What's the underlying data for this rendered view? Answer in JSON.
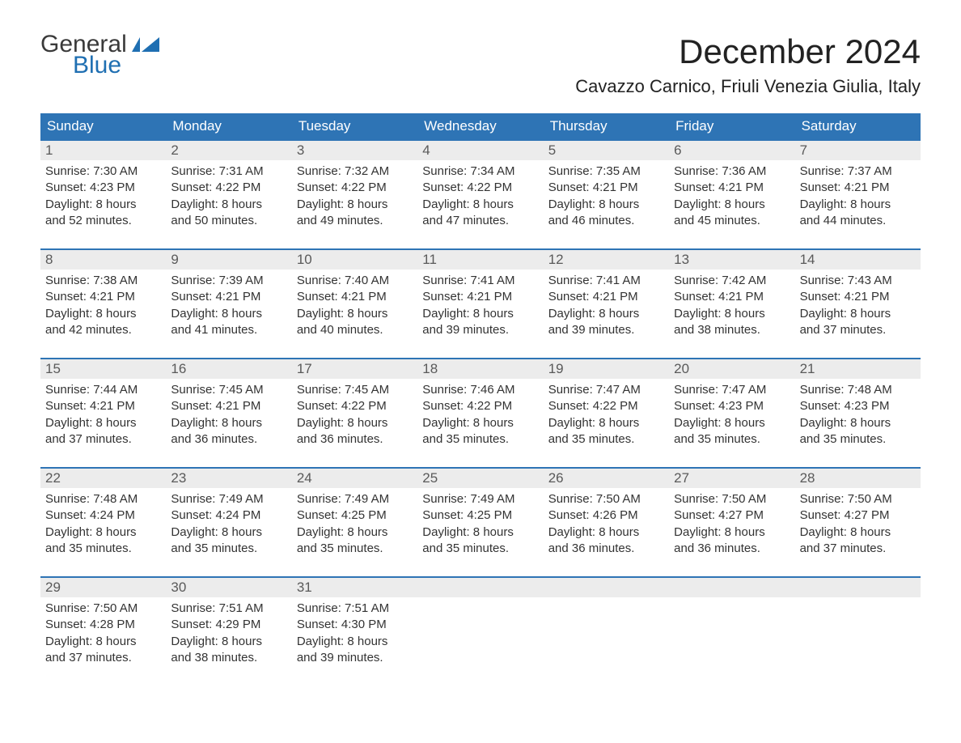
{
  "logo": {
    "general": "General",
    "blue": "Blue",
    "accent": "#1f6fb2"
  },
  "title": "December 2024",
  "location": "Cavazzo Carnico, Friuli Venezia Giulia, Italy",
  "colors": {
    "header_bg": "#2e74b5",
    "header_text": "#ffffff",
    "daynum_bg": "#ececec",
    "daynum_text": "#5a5a5a",
    "body_text": "#333333",
    "week_border": "#2e74b5"
  },
  "dow": [
    "Sunday",
    "Monday",
    "Tuesday",
    "Wednesday",
    "Thursday",
    "Friday",
    "Saturday"
  ],
  "weeks": [
    [
      {
        "n": "1",
        "sunrise": "Sunrise: 7:30 AM",
        "sunset": "Sunset: 4:23 PM",
        "d1": "Daylight: 8 hours",
        "d2": "and 52 minutes."
      },
      {
        "n": "2",
        "sunrise": "Sunrise: 7:31 AM",
        "sunset": "Sunset: 4:22 PM",
        "d1": "Daylight: 8 hours",
        "d2": "and 50 minutes."
      },
      {
        "n": "3",
        "sunrise": "Sunrise: 7:32 AM",
        "sunset": "Sunset: 4:22 PM",
        "d1": "Daylight: 8 hours",
        "d2": "and 49 minutes."
      },
      {
        "n": "4",
        "sunrise": "Sunrise: 7:34 AM",
        "sunset": "Sunset: 4:22 PM",
        "d1": "Daylight: 8 hours",
        "d2": "and 47 minutes."
      },
      {
        "n": "5",
        "sunrise": "Sunrise: 7:35 AM",
        "sunset": "Sunset: 4:21 PM",
        "d1": "Daylight: 8 hours",
        "d2": "and 46 minutes."
      },
      {
        "n": "6",
        "sunrise": "Sunrise: 7:36 AM",
        "sunset": "Sunset: 4:21 PM",
        "d1": "Daylight: 8 hours",
        "d2": "and 45 minutes."
      },
      {
        "n": "7",
        "sunrise": "Sunrise: 7:37 AM",
        "sunset": "Sunset: 4:21 PM",
        "d1": "Daylight: 8 hours",
        "d2": "and 44 minutes."
      }
    ],
    [
      {
        "n": "8",
        "sunrise": "Sunrise: 7:38 AM",
        "sunset": "Sunset: 4:21 PM",
        "d1": "Daylight: 8 hours",
        "d2": "and 42 minutes."
      },
      {
        "n": "9",
        "sunrise": "Sunrise: 7:39 AM",
        "sunset": "Sunset: 4:21 PM",
        "d1": "Daylight: 8 hours",
        "d2": "and 41 minutes."
      },
      {
        "n": "10",
        "sunrise": "Sunrise: 7:40 AM",
        "sunset": "Sunset: 4:21 PM",
        "d1": "Daylight: 8 hours",
        "d2": "and 40 minutes."
      },
      {
        "n": "11",
        "sunrise": "Sunrise: 7:41 AM",
        "sunset": "Sunset: 4:21 PM",
        "d1": "Daylight: 8 hours",
        "d2": "and 39 minutes."
      },
      {
        "n": "12",
        "sunrise": "Sunrise: 7:41 AM",
        "sunset": "Sunset: 4:21 PM",
        "d1": "Daylight: 8 hours",
        "d2": "and 39 minutes."
      },
      {
        "n": "13",
        "sunrise": "Sunrise: 7:42 AM",
        "sunset": "Sunset: 4:21 PM",
        "d1": "Daylight: 8 hours",
        "d2": "and 38 minutes."
      },
      {
        "n": "14",
        "sunrise": "Sunrise: 7:43 AM",
        "sunset": "Sunset: 4:21 PM",
        "d1": "Daylight: 8 hours",
        "d2": "and 37 minutes."
      }
    ],
    [
      {
        "n": "15",
        "sunrise": "Sunrise: 7:44 AM",
        "sunset": "Sunset: 4:21 PM",
        "d1": "Daylight: 8 hours",
        "d2": "and 37 minutes."
      },
      {
        "n": "16",
        "sunrise": "Sunrise: 7:45 AM",
        "sunset": "Sunset: 4:21 PM",
        "d1": "Daylight: 8 hours",
        "d2": "and 36 minutes."
      },
      {
        "n": "17",
        "sunrise": "Sunrise: 7:45 AM",
        "sunset": "Sunset: 4:22 PM",
        "d1": "Daylight: 8 hours",
        "d2": "and 36 minutes."
      },
      {
        "n": "18",
        "sunrise": "Sunrise: 7:46 AM",
        "sunset": "Sunset: 4:22 PM",
        "d1": "Daylight: 8 hours",
        "d2": "and 35 minutes."
      },
      {
        "n": "19",
        "sunrise": "Sunrise: 7:47 AM",
        "sunset": "Sunset: 4:22 PM",
        "d1": "Daylight: 8 hours",
        "d2": "and 35 minutes."
      },
      {
        "n": "20",
        "sunrise": "Sunrise: 7:47 AM",
        "sunset": "Sunset: 4:23 PM",
        "d1": "Daylight: 8 hours",
        "d2": "and 35 minutes."
      },
      {
        "n": "21",
        "sunrise": "Sunrise: 7:48 AM",
        "sunset": "Sunset: 4:23 PM",
        "d1": "Daylight: 8 hours",
        "d2": "and 35 minutes."
      }
    ],
    [
      {
        "n": "22",
        "sunrise": "Sunrise: 7:48 AM",
        "sunset": "Sunset: 4:24 PM",
        "d1": "Daylight: 8 hours",
        "d2": "and 35 minutes."
      },
      {
        "n": "23",
        "sunrise": "Sunrise: 7:49 AM",
        "sunset": "Sunset: 4:24 PM",
        "d1": "Daylight: 8 hours",
        "d2": "and 35 minutes."
      },
      {
        "n": "24",
        "sunrise": "Sunrise: 7:49 AM",
        "sunset": "Sunset: 4:25 PM",
        "d1": "Daylight: 8 hours",
        "d2": "and 35 minutes."
      },
      {
        "n": "25",
        "sunrise": "Sunrise: 7:49 AM",
        "sunset": "Sunset: 4:25 PM",
        "d1": "Daylight: 8 hours",
        "d2": "and 35 minutes."
      },
      {
        "n": "26",
        "sunrise": "Sunrise: 7:50 AM",
        "sunset": "Sunset: 4:26 PM",
        "d1": "Daylight: 8 hours",
        "d2": "and 36 minutes."
      },
      {
        "n": "27",
        "sunrise": "Sunrise: 7:50 AM",
        "sunset": "Sunset: 4:27 PM",
        "d1": "Daylight: 8 hours",
        "d2": "and 36 minutes."
      },
      {
        "n": "28",
        "sunrise": "Sunrise: 7:50 AM",
        "sunset": "Sunset: 4:27 PM",
        "d1": "Daylight: 8 hours",
        "d2": "and 37 minutes."
      }
    ],
    [
      {
        "n": "29",
        "sunrise": "Sunrise: 7:50 AM",
        "sunset": "Sunset: 4:28 PM",
        "d1": "Daylight: 8 hours",
        "d2": "and 37 minutes."
      },
      {
        "n": "30",
        "sunrise": "Sunrise: 7:51 AM",
        "sunset": "Sunset: 4:29 PM",
        "d1": "Daylight: 8 hours",
        "d2": "and 38 minutes."
      },
      {
        "n": "31",
        "sunrise": "Sunrise: 7:51 AM",
        "sunset": "Sunset: 4:30 PM",
        "d1": "Daylight: 8 hours",
        "d2": "and 39 minutes."
      },
      null,
      null,
      null,
      null
    ]
  ]
}
